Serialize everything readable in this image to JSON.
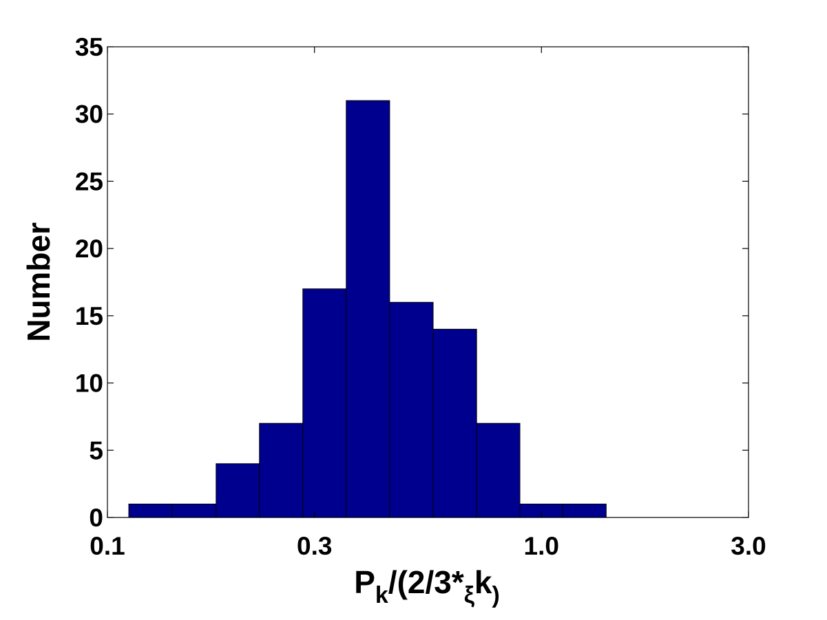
{
  "chart_data": {
    "type": "histogram",
    "xlabel": [
      "P",
      "k",
      "/(2/3*",
      "ξ",
      "k",
      ")"
    ],
    "ylabel": "Number",
    "bins": [
      0.112,
      0.141,
      0.178,
      0.224,
      0.282,
      0.355,
      0.447,
      0.563,
      0.709,
      0.892,
      1.12,
      1.41
    ],
    "values": [
      1,
      1,
      4,
      7,
      17,
      31,
      16,
      14,
      7,
      1,
      1
    ],
    "color": "#00008f",
    "xlim": [
      0.1,
      3.0
    ],
    "xscale": "log",
    "xticks": [
      0.1,
      0.3,
      {
        "value": 1.0,
        "label": "1.0"
      },
      {
        "value": 3.0,
        "label": "3.0"
      }
    ],
    "ylim": [
      0,
      35
    ],
    "yticks": [
      0,
      5,
      10,
      15,
      20,
      25,
      30,
      35
    ]
  }
}
